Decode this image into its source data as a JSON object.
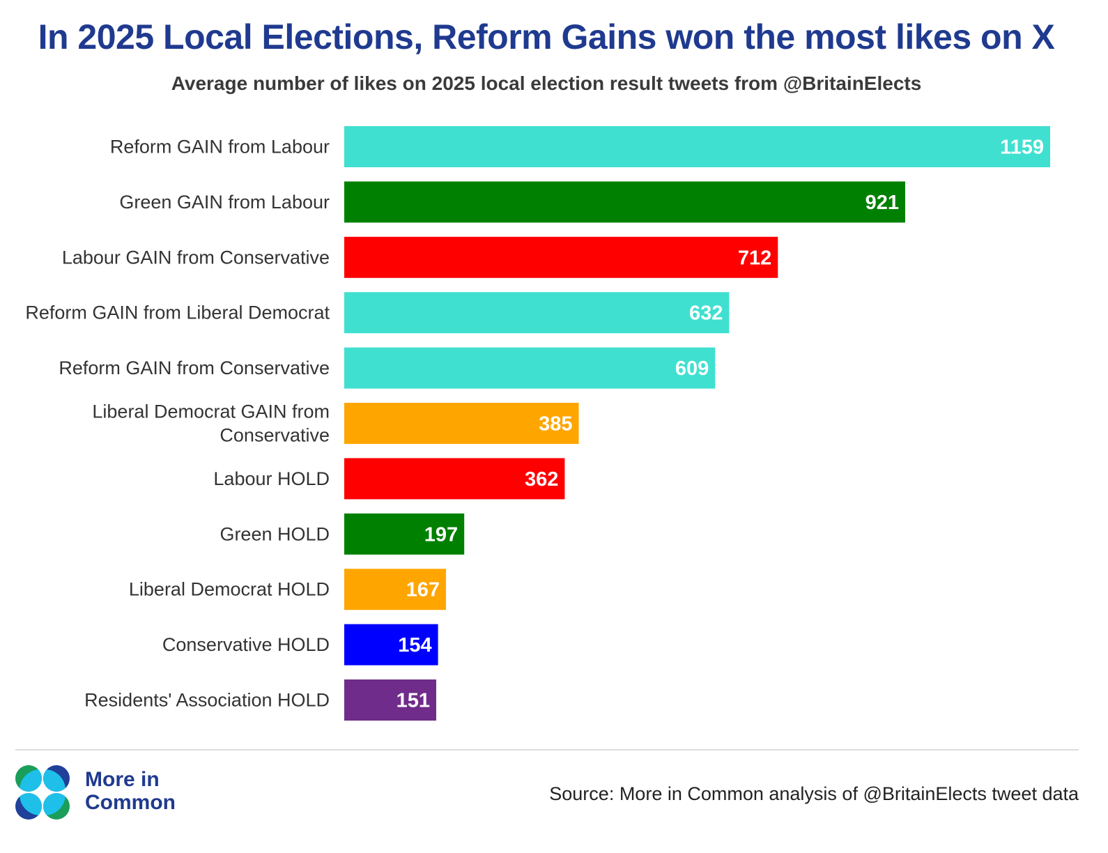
{
  "chart_data": {
    "type": "bar",
    "orientation": "horizontal",
    "title": "In 2025 Local Elections, Reform Gains won the most likes on X",
    "subtitle": "Average number of likes on 2025 local election result tweets from @BritainElects",
    "xlabel": "",
    "ylabel": "",
    "xlim": [
      0,
      1159
    ],
    "grid": false,
    "data_labels": true,
    "categories": [
      "Reform GAIN from Labour",
      "Green GAIN from Labour",
      "Labour GAIN from Conservative",
      "Reform GAIN from Liberal Democrat",
      "Reform GAIN from Conservative",
      "Liberal Democrat GAIN from Conservative",
      "Labour HOLD",
      "Green HOLD",
      "Liberal Democrat HOLD",
      "Conservative HOLD",
      "Residents' Association HOLD"
    ],
    "category_lines": [
      [
        "Reform GAIN from Labour"
      ],
      [
        "Green GAIN from Labour"
      ],
      [
        "Labour GAIN from Conservative"
      ],
      [
        "Reform GAIN from Liberal Democrat"
      ],
      [
        "Reform GAIN from Conservative"
      ],
      [
        "Liberal Democrat GAIN from",
        "Conservative"
      ],
      [
        "Labour HOLD"
      ],
      [
        "Green HOLD"
      ],
      [
        "Liberal Democrat HOLD"
      ],
      [
        "Conservative HOLD"
      ],
      [
        "Residents' Association HOLD"
      ]
    ],
    "values": [
      1159,
      921,
      712,
      632,
      609,
      385,
      362,
      197,
      167,
      154,
      151
    ],
    "colors": [
      "#40e0d0",
      "#008000",
      "#ff0000",
      "#40e0d0",
      "#40e0d0",
      "#ffa500",
      "#ff0000",
      "#008000",
      "#ffa500",
      "#0000ff",
      "#6f2c8a"
    ]
  },
  "footer": {
    "brand_line1": "More in",
    "brand_line2": "Common",
    "source": "Source: More in Common analysis of @BritainElects tweet data"
  },
  "colors": {
    "title": "#1f3a8f",
    "logo_green": "#1a9e5a",
    "logo_navy": "#20409a",
    "logo_cyan": "#1ec0ea"
  }
}
